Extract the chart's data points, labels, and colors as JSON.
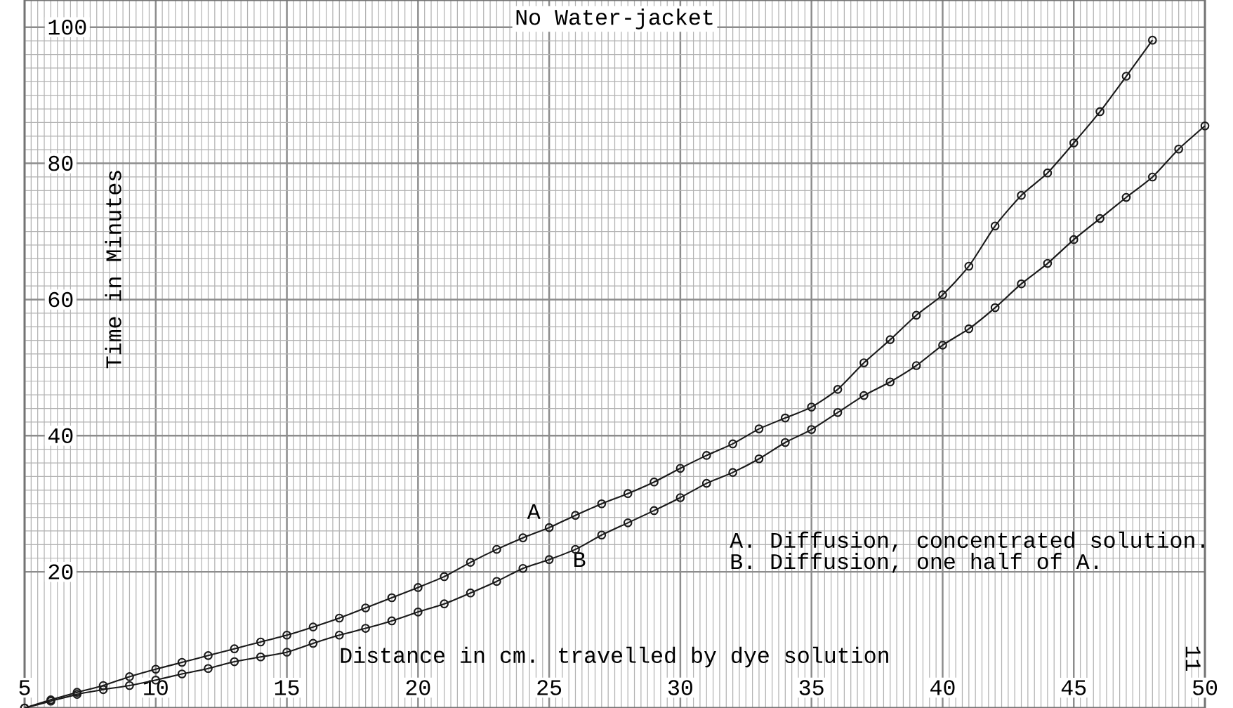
{
  "chart_data": {
    "type": "line",
    "title": "No Water-jacket",
    "xlabel": "Distance in cm. travelled by dye solution",
    "ylabel": "Time in Minutes",
    "x": [
      5,
      6,
      7,
      8,
      9,
      10,
      11,
      12,
      13,
      14,
      15,
      16,
      17,
      18,
      19,
      20,
      21,
      22,
      23,
      24,
      25,
      26,
      27,
      28,
      29,
      30,
      31,
      32,
      33,
      34,
      35,
      36,
      37,
      38,
      39,
      40,
      41,
      42,
      43,
      44,
      45,
      46,
      47,
      48,
      49,
      50
    ],
    "series": [
      {
        "name": "A",
        "color": "#1a1a1a",
        "values": [
          0,
          1.2,
          2.3,
          3.3,
          4.6,
          5.7,
          6.7,
          7.7,
          8.7,
          9.7,
          10.7,
          11.9,
          13.2,
          14.7,
          16.2,
          17.7,
          19.3,
          21.4,
          23.3,
          25.0,
          26.5,
          28.3,
          30.0,
          31.5,
          33.2,
          35.2,
          37.1,
          38.8,
          41.0,
          42.6,
          44.2,
          46.8,
          50.7,
          54.1,
          57.7,
          60.7,
          64.9,
          70.8,
          75.3,
          78.6,
          83.0,
          87.6,
          92.8,
          98.1,
          null,
          null
        ]
      },
      {
        "name": "B",
        "color": "#1a1a1a",
        "values": [
          0,
          1.0,
          2.0,
          2.7,
          3.3,
          4.1,
          5.0,
          5.8,
          6.8,
          7.5,
          8.2,
          9.5,
          10.7,
          11.7,
          12.8,
          14.1,
          15.3,
          16.9,
          18.6,
          20.5,
          21.8,
          23.3,
          25.4,
          27.2,
          29.0,
          30.9,
          33.0,
          34.6,
          36.6,
          39.0,
          40.9,
          43.4,
          45.9,
          47.9,
          50.3,
          53.3,
          55.7,
          58.8,
          62.3,
          65.3,
          68.8,
          71.9,
          75.0,
          78.0,
          82.1,
          85.5
        ]
      }
    ],
    "annotations": [
      "A. Diffusion, concentrated solution.",
      "B. Diffusion, one half of A.",
      "11"
    ],
    "xlim": [
      5,
      50
    ],
    "ylim": [
      0,
      104
    ],
    "xticks": [
      5,
      10,
      15,
      20,
      25,
      30,
      35,
      40,
      45,
      50
    ],
    "yticks": [
      20,
      40,
      60,
      80,
      100
    ],
    "grid": true,
    "legend": false,
    "marker": "circle",
    "line_style": "solid"
  }
}
